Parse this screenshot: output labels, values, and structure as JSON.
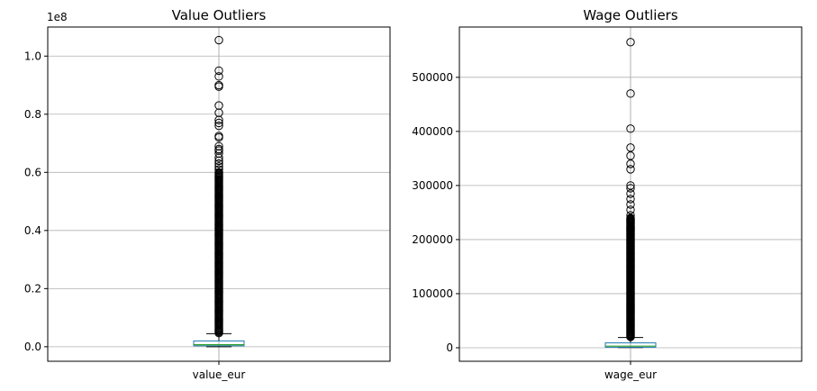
{
  "chart_data": [
    {
      "type": "box",
      "title": "Value Outliers",
      "category": "value_eur",
      "offset_label": "1e8",
      "scale": 100000000,
      "ylim": [
        -0.05,
        1.1
      ],
      "yticks": [
        0.0,
        0.2,
        0.4,
        0.6,
        0.8,
        1.0
      ],
      "ytick_labels": [
        "0.0",
        "0.2",
        "0.4",
        "0.6",
        "0.8",
        "1.0"
      ],
      "grid": true,
      "box": {
        "q1": 0.0032,
        "median": 0.007,
        "q3": 0.02,
        "whisker_low": 0.0,
        "whisker_high": 0.045
      },
      "fliers": [
        1.055,
        0.95,
        0.93,
        0.9,
        0.895,
        0.83,
        0.805,
        0.78,
        0.77,
        0.76,
        0.725,
        0.72,
        0.69,
        0.68,
        0.675,
        0.665,
        0.65,
        0.64,
        0.63,
        0.62,
        0.61,
        0.6
      ],
      "dense_flier_range": [
        0.047,
        0.6
      ],
      "colors": {
        "box": "#1f77b4",
        "median": "#2ca02c",
        "whisker": "#000000",
        "grid": "#b0b0b0"
      }
    },
    {
      "type": "box",
      "title": "Wage Outliers",
      "category": "wage_eur",
      "ylim": [
        -25000,
        593000
      ],
      "yticks": [
        0,
        100000,
        200000,
        300000,
        400000,
        500000
      ],
      "ytick_labels": [
        "0",
        "100000",
        "200000",
        "300000",
        "400000",
        "500000"
      ],
      "grid": true,
      "box": {
        "q1": 1000,
        "median": 3000,
        "q3": 9000,
        "whisker_low": 500,
        "whisker_high": 19000
      },
      "fliers": [
        565000,
        470000,
        405000,
        370000,
        355000,
        340000,
        330000,
        300000,
        295000,
        285000,
        275000,
        265000,
        255000,
        245000
      ],
      "dense_flier_range": [
        20000,
        240000
      ],
      "colors": {
        "box": "#1f77b4",
        "median": "#2ca02c",
        "whisker": "#000000",
        "grid": "#b0b0b0"
      }
    }
  ]
}
